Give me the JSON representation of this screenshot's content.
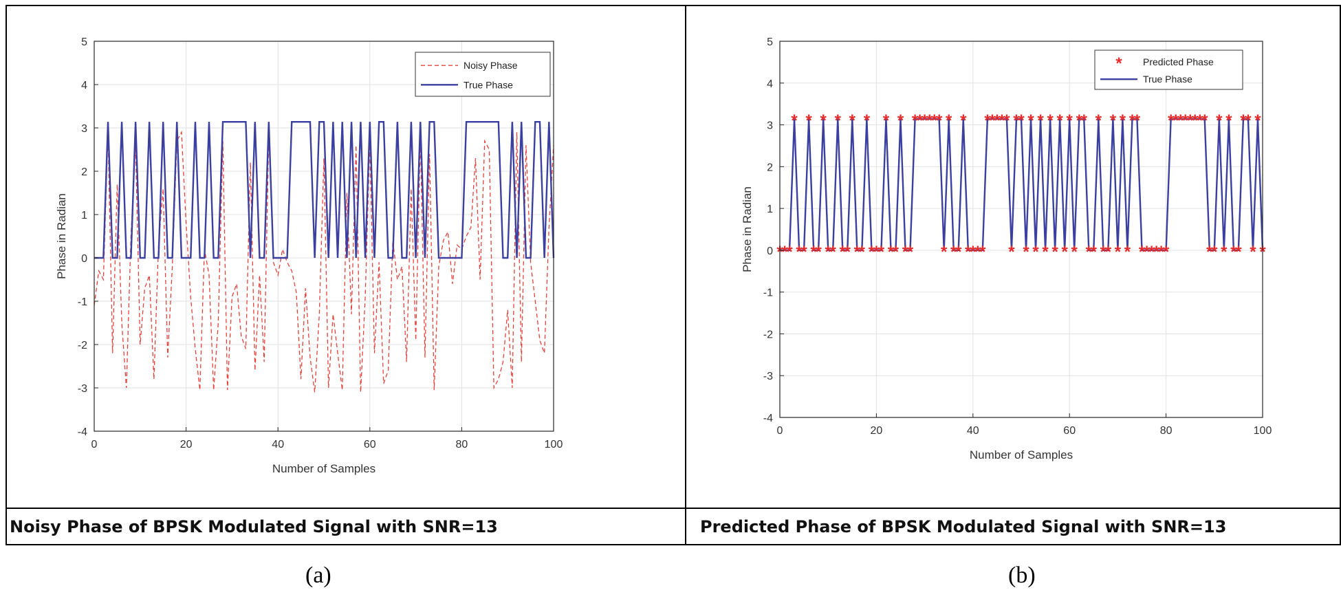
{
  "captions": {
    "left": "Noisy Phase of BPSK Modulated Signal with SNR=13",
    "right": "Predicted Phase of BPSK Modulated Signal with SNR=13"
  },
  "sublabels": {
    "a": "(a)",
    "b": "(b)"
  },
  "colors": {
    "true_phase": "#3b3fa0",
    "noisy_phase": "#e8403a",
    "predicted": "#e52b2b",
    "grid": "#e2e2e2"
  },
  "chart_data": [
    {
      "type": "line",
      "title": "",
      "xlabel": "Number of Samples",
      "ylabel": "Phase in Radian",
      "xlim": [
        0,
        100
      ],
      "ylim": [
        -4,
        5
      ],
      "xticks": [
        0,
        20,
        40,
        60,
        80,
        100
      ],
      "yticks": [
        -4,
        -3,
        -2,
        -1,
        0,
        1,
        2,
        3,
        4,
        5
      ],
      "grid": true,
      "legend": "top-right",
      "series": [
        {
          "name": "Noisy Phase",
          "style": "dashed",
          "values": [
            -1.1,
            -0.3,
            -0.5,
            2.9,
            -2.2,
            1.7,
            -1.5,
            -3.0,
            0.5,
            2.6,
            -2.0,
            -0.7,
            -0.4,
            -2.8,
            0.3,
            1.6,
            -2.3,
            -0.2,
            2.7,
            2.9,
            0.8,
            -0.9,
            -2.1,
            -3.05,
            0.2,
            -0.4,
            -3.05,
            -1.5,
            2.7,
            -3.05,
            -0.9,
            -0.6,
            -1.8,
            -2.1,
            2.2,
            -2.6,
            -0.4,
            -2.4,
            2.85,
            -0.1,
            -0.4,
            0.2,
            -0.1,
            -0.3,
            -0.8,
            -2.8,
            -0.7,
            -2.3,
            -3.1,
            -1.3,
            2.3,
            -3.0,
            -1.3,
            -2.2,
            -3.05,
            1.5,
            -1.3,
            2.6,
            -3.1,
            -0.9,
            2.7,
            -2.2,
            -0.1,
            -2.9,
            -2.6,
            0.4,
            -0.5,
            -0.2,
            -2.4,
            1.6,
            -1.9,
            2.8,
            -2.3,
            2.4,
            -3.05,
            -0.2,
            0.4,
            0.6,
            -0.6,
            0.3,
            0.2,
            0.5,
            0.7,
            2.3,
            -0.5,
            2.7,
            2.5,
            -3.0,
            -2.8,
            -2.4,
            -1.2,
            -3.0,
            2.9,
            -2.4,
            2.6,
            -0.1,
            -1.0,
            -1.9,
            -2.2,
            0.7,
            2.6
          ]
        },
        {
          "name": "True Phase",
          "style": "solid",
          "values": [
            0,
            0,
            0,
            3.14,
            0,
            0,
            3.14,
            0,
            0,
            3.14,
            0,
            0,
            3.14,
            0,
            0,
            3.14,
            0,
            0,
            3.14,
            0,
            0,
            0,
            3.14,
            0,
            0,
            3.14,
            0,
            0,
            3.14,
            3.14,
            3.14,
            3.14,
            3.14,
            3.14,
            0,
            3.14,
            0,
            0,
            3.14,
            0,
            0,
            0,
            0,
            3.14,
            3.14,
            3.14,
            3.14,
            3.14,
            0,
            3.14,
            3.14,
            0,
            3.14,
            0,
            3.14,
            0,
            3.14,
            0,
            3.14,
            0,
            3.14,
            0,
            3.14,
            3.14,
            0,
            0,
            3.14,
            0,
            0,
            3.14,
            0,
            3.14,
            0,
            3.14,
            3.14,
            0,
            0,
            0,
            0,
            0,
            0,
            3.14,
            3.14,
            3.14,
            3.14,
            3.14,
            3.14,
            3.14,
            3.14,
            0,
            0,
            3.14,
            0,
            3.14,
            0,
            0,
            3.14,
            3.14,
            0,
            3.14,
            0
          ]
        }
      ]
    },
    {
      "type": "line",
      "title": "",
      "xlabel": "Number of Samples",
      "ylabel": "Phase in Radian",
      "xlim": [
        0,
        100
      ],
      "ylim": [
        -4,
        5
      ],
      "xticks": [
        0,
        20,
        40,
        60,
        80,
        100
      ],
      "yticks": [
        -4,
        -3,
        -2,
        -1,
        0,
        1,
        2,
        3,
        4,
        5
      ],
      "grid": true,
      "legend": "top-right",
      "series": [
        {
          "name": "Predicted Phase",
          "style": "markers",
          "values": [
            0,
            0,
            0,
            3.14,
            0,
            0,
            3.14,
            0,
            0,
            3.14,
            0,
            0,
            3.14,
            0,
            0,
            3.14,
            0,
            0,
            3.14,
            0,
            0,
            0,
            3.14,
            0,
            0,
            3.14,
            0,
            0,
            3.14,
            3.14,
            3.14,
            3.14,
            3.14,
            3.14,
            0,
            3.14,
            0,
            0,
            3.14,
            0,
            0,
            0,
            0,
            3.14,
            3.14,
            3.14,
            3.14,
            3.14,
            0,
            3.14,
            3.14,
            0,
            3.14,
            0,
            3.14,
            0,
            3.14,
            0,
            3.14,
            0,
            3.14,
            0,
            3.14,
            3.14,
            0,
            0,
            3.14,
            0,
            0,
            3.14,
            0,
            3.14,
            0,
            3.14,
            3.14,
            0,
            0,
            0,
            0,
            0,
            0,
            3.14,
            3.14,
            3.14,
            3.14,
            3.14,
            3.14,
            3.14,
            3.14,
            0,
            0,
            3.14,
            0,
            3.14,
            0,
            0,
            3.14,
            3.14,
            0,
            3.14,
            0
          ]
        },
        {
          "name": "True Phase",
          "style": "solid",
          "values": [
            0,
            0,
            0,
            3.14,
            0,
            0,
            3.14,
            0,
            0,
            3.14,
            0,
            0,
            3.14,
            0,
            0,
            3.14,
            0,
            0,
            3.14,
            0,
            0,
            0,
            3.14,
            0,
            0,
            3.14,
            0,
            0,
            3.14,
            3.14,
            3.14,
            3.14,
            3.14,
            3.14,
            0,
            3.14,
            0,
            0,
            3.14,
            0,
            0,
            0,
            0,
            3.14,
            3.14,
            3.14,
            3.14,
            3.14,
            0,
            3.14,
            3.14,
            0,
            3.14,
            0,
            3.14,
            0,
            3.14,
            0,
            3.14,
            0,
            3.14,
            0,
            3.14,
            3.14,
            0,
            0,
            3.14,
            0,
            0,
            3.14,
            0,
            3.14,
            0,
            3.14,
            3.14,
            0,
            0,
            0,
            0,
            0,
            0,
            3.14,
            3.14,
            3.14,
            3.14,
            3.14,
            3.14,
            3.14,
            3.14,
            0,
            0,
            3.14,
            0,
            3.14,
            0,
            0,
            3.14,
            3.14,
            0,
            3.14,
            0
          ]
        }
      ]
    }
  ]
}
